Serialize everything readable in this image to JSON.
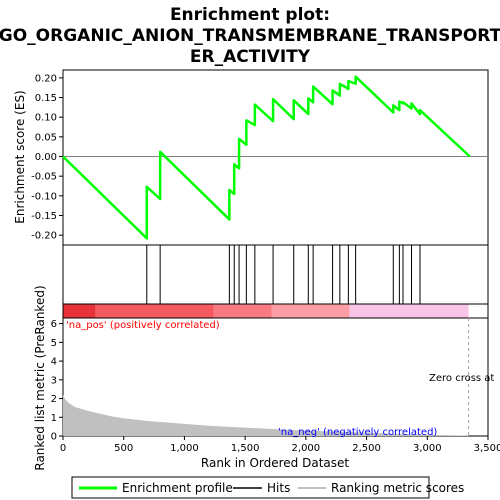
{
  "chart_data": {
    "type": "line",
    "title_lines": [
      "Enrichment plot:",
      "GO_ORGANIC_ANION_TRANSMEMBRANE_TRANSPORT",
      "ER_ACTIVITY"
    ],
    "es_panel": {
      "ylabel": "Enrichment score (ES)",
      "ylim": [
        -0.225,
        0.22
      ],
      "yticks": [
        "0.20",
        "0.15",
        "0.10",
        "0.05",
        "0.00",
        "-0.05",
        "-0.10",
        "-0.15",
        "-0.20"
      ],
      "ytick_values": [
        0.2,
        0.15,
        0.1,
        0.05,
        0.0,
        -0.05,
        -0.1,
        -0.15,
        -0.2
      ],
      "series": [
        {
          "name": "Enrichment profile",
          "color": "#00ff00",
          "x": [
            0,
            690,
            690,
            800,
            800,
            1370,
            1370,
            1410,
            1410,
            1450,
            1450,
            1510,
            1510,
            1580,
            1580,
            1730,
            1730,
            1900,
            1900,
            2020,
            2020,
            2060,
            2060,
            2220,
            2220,
            2280,
            2280,
            2350,
            2350,
            2410,
            2410,
            2720,
            2720,
            2770,
            2770,
            2800,
            2800,
            2870,
            2870,
            2940,
            2940,
            3350
          ],
          "y": [
            0.0,
            -0.208,
            -0.077,
            -0.108,
            0.012,
            -0.16,
            -0.085,
            -0.095,
            -0.02,
            -0.03,
            0.045,
            0.03,
            0.092,
            0.08,
            0.132,
            0.09,
            0.146,
            0.095,
            0.143,
            0.108,
            0.148,
            0.138,
            0.178,
            0.133,
            0.168,
            0.155,
            0.185,
            0.172,
            0.192,
            0.185,
            0.203,
            0.112,
            0.13,
            0.118,
            0.14,
            0.135,
            0.138,
            0.122,
            0.135,
            0.108,
            0.118,
            0.0
          ]
        }
      ]
    },
    "hits": [
      690,
      800,
      1370,
      1410,
      1450,
      1510,
      1580,
      1730,
      1900,
      2020,
      2060,
      2220,
      2280,
      2350,
      2410,
      2720,
      2770,
      2800,
      2870,
      2940
    ],
    "colorbar": {
      "positive_label": "'na_pos' (positively correlated)",
      "negative_label": "'na_neg' (negatively correlated)",
      "positive_color": "#ff0000",
      "negative_color": "#0000ff",
      "segments": [
        {
          "x0": 0,
          "x1": 270,
          "color": "#e8323a"
        },
        {
          "x0": 270,
          "x1": 1240,
          "color": "#f45a5f"
        },
        {
          "x0": 1240,
          "x1": 1720,
          "color": "#f87b82"
        },
        {
          "x0": 1720,
          "x1": 2360,
          "color": "#fb9ea6"
        },
        {
          "x0": 2360,
          "x1": 3340,
          "color": "#f8c4e8"
        }
      ]
    },
    "rank_panel": {
      "ylabel": "Ranked list metric (PreRanked)",
      "ylim": [
        0,
        6.3
      ],
      "yticks": [
        "0",
        "1",
        "2",
        "3",
        "4",
        "5",
        "6"
      ],
      "ytick_values": [
        0,
        1,
        2,
        3,
        4,
        5,
        6
      ],
      "metric_profile": {
        "x": [
          0,
          20,
          50,
          100,
          150,
          200,
          300,
          400,
          500,
          700,
          900,
          1200,
          1500,
          1800,
          2100,
          2400,
          2700,
          3000,
          3340
        ],
        "y": [
          2.2,
          1.95,
          1.75,
          1.55,
          1.45,
          1.35,
          1.2,
          1.05,
          0.95,
          0.8,
          0.7,
          0.55,
          0.45,
          0.35,
          0.27,
          0.2,
          0.13,
          0.07,
          0.02
        ]
      },
      "zero_cross_label": "Zero cross at",
      "zero_cross_x": 3340
    },
    "xaxis": {
      "label": "Rank in Ordered Dataset",
      "xlim": [
        0,
        3500
      ],
      "ticks": [
        "0",
        "500",
        "1,000",
        "1,500",
        "2,000",
        "2,500",
        "3,000",
        "3,500"
      ],
      "tick_values": [
        0,
        500,
        1000,
        1500,
        2000,
        2500,
        3000,
        3500
      ]
    },
    "legend": {
      "items": [
        {
          "label": "Enrichment profile",
          "color": "#00ff00"
        },
        {
          "label": "Hits",
          "color": "#000000"
        },
        {
          "label": "Ranking metric scores",
          "color": "#c0c0c0"
        }
      ]
    }
  }
}
